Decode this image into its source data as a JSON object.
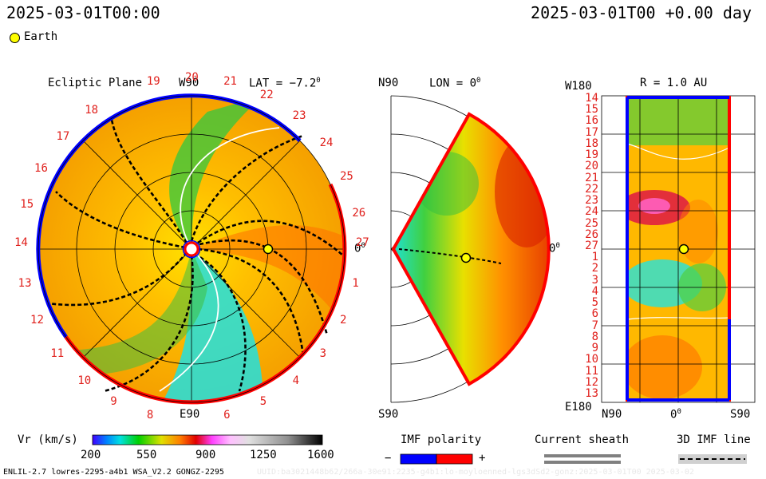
{
  "header": {
    "left_timestamp": "2025-03-01T00:00",
    "right_timestamp": "2025-03-01T00 +0.00 day"
  },
  "legend": {
    "earth_label": "Earth",
    "earth_color": "#ffff00"
  },
  "ecliptic_panel": {
    "title": "Ecliptic Plane",
    "lat_label": "LAT = −7.2",
    "degree_sign": "0",
    "top_label": "W90",
    "bottom_label": "E90",
    "right_label": "0",
    "ring_labels": [
      "19",
      "20",
      "21",
      "22",
      "23",
      "24",
      "25",
      "26",
      "27",
      "1",
      "2",
      "3",
      "4",
      "5",
      "6",
      "8",
      "9",
      "10",
      "11",
      "12",
      "13",
      "14",
      "15",
      "16",
      "17",
      "18"
    ]
  },
  "meridional_panel": {
    "top_label": "N90",
    "lon_label": "LON = 0",
    "degree_sign": "0",
    "bottom_label": "S90",
    "right_label": "0"
  },
  "radial_panel": {
    "top_left": "W180",
    "title": "R = 1.0 AU",
    "bottom_left": "E180",
    "x_labels": [
      "N90",
      "0",
      "S90"
    ],
    "row_labels": [
      "14",
      "15",
      "16",
      "17",
      "18",
      "19",
      "20",
      "21",
      "22",
      "23",
      "24",
      "25",
      "26",
      "27",
      "1",
      "2",
      "3",
      "4",
      "5",
      "6",
      "7",
      "8",
      "9",
      "10",
      "11",
      "12",
      "13"
    ]
  },
  "colorbar": {
    "label": "Vr (km/s)",
    "ticks": [
      "200",
      "550",
      "900",
      "1250",
      "1600"
    ],
    "range": [
      200,
      1600
    ]
  },
  "imf_polarity": {
    "title": "IMF polarity",
    "minus": "−",
    "plus": "+",
    "neg_color": "#0000ff",
    "pos_color": "#ff0000"
  },
  "current_sheath": {
    "title": "Current sheath"
  },
  "imf_line": {
    "title": "3D IMF line"
  },
  "footer": {
    "left": "ENLIL-2.7 lowres-2295-a4b1 WSA_V2.2 GONGZ-2295",
    "right": "UUID:ba3021448b62/266a-30e91:2235-g4b1:lo-moyloenned-lgs3dSd2-gonz:2025-03-01T00   2025-03-02"
  }
}
